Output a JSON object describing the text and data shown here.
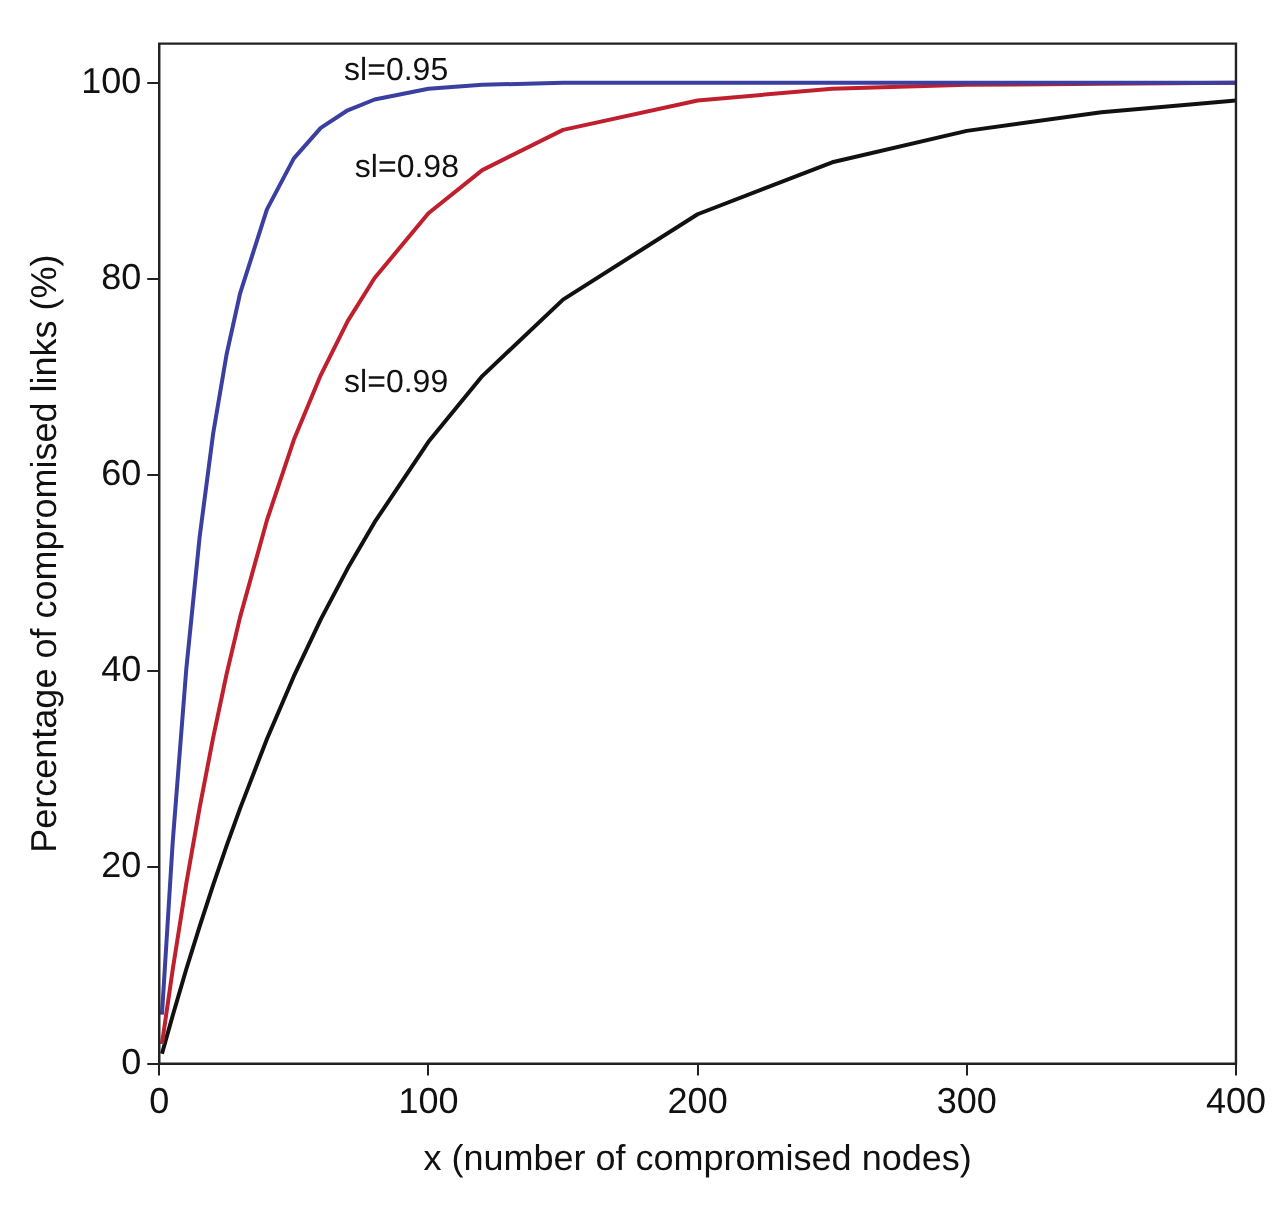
{
  "chart_data": {
    "type": "line",
    "xlabel": "x (number of compromised nodes)",
    "ylabel": "Percentage of compromised links (%)",
    "xlim": [
      0,
      400
    ],
    "ylim": [
      0,
      104
    ],
    "xticks": [
      0,
      100,
      200,
      300,
      400
    ],
    "yticks": [
      0,
      20,
      40,
      60,
      80,
      100
    ],
    "grid": false,
    "legend": false,
    "marker": "none",
    "line_style": "solid",
    "series": [
      {
        "name": "sl=0.95",
        "color": "#3a3fa0",
        "x": [
          1,
          5,
          10,
          15,
          20,
          25,
          30,
          40,
          50,
          60,
          70,
          80,
          100,
          120,
          150,
          200,
          250,
          300,
          350,
          400
        ],
        "values": [
          5,
          22.6,
          40.1,
          53.7,
          64.2,
          72.3,
          78.5,
          87.1,
          92.3,
          95.4,
          97.2,
          98.3,
          99.4,
          99.8,
          100,
          100,
          100,
          100,
          100,
          100
        ]
      },
      {
        "name": "sl=0.98",
        "color": "#c0202e",
        "x": [
          1,
          5,
          10,
          15,
          20,
          25,
          30,
          40,
          50,
          60,
          70,
          80,
          100,
          120,
          150,
          200,
          250,
          300,
          350,
          400
        ],
        "values": [
          2,
          9.6,
          18.3,
          26.1,
          33.2,
          39.7,
          45.5,
          55.4,
          63.6,
          70.2,
          75.7,
          80.1,
          86.7,
          91.1,
          95.2,
          98.2,
          99.4,
          99.8,
          99.9,
          100
        ]
      },
      {
        "name": "sl=0.99",
        "color": "#111111",
        "x": [
          1,
          5,
          10,
          15,
          20,
          25,
          30,
          40,
          50,
          60,
          70,
          80,
          100,
          120,
          150,
          200,
          250,
          300,
          350,
          400
        ],
        "values": [
          1,
          4.9,
          9.6,
          14.0,
          18.2,
          22.2,
          26.0,
          33.1,
          39.5,
          45.3,
          50.5,
          55.2,
          63.4,
          70.1,
          77.9,
          86.6,
          91.9,
          95.1,
          97.0,
          98.2
        ]
      }
    ]
  }
}
